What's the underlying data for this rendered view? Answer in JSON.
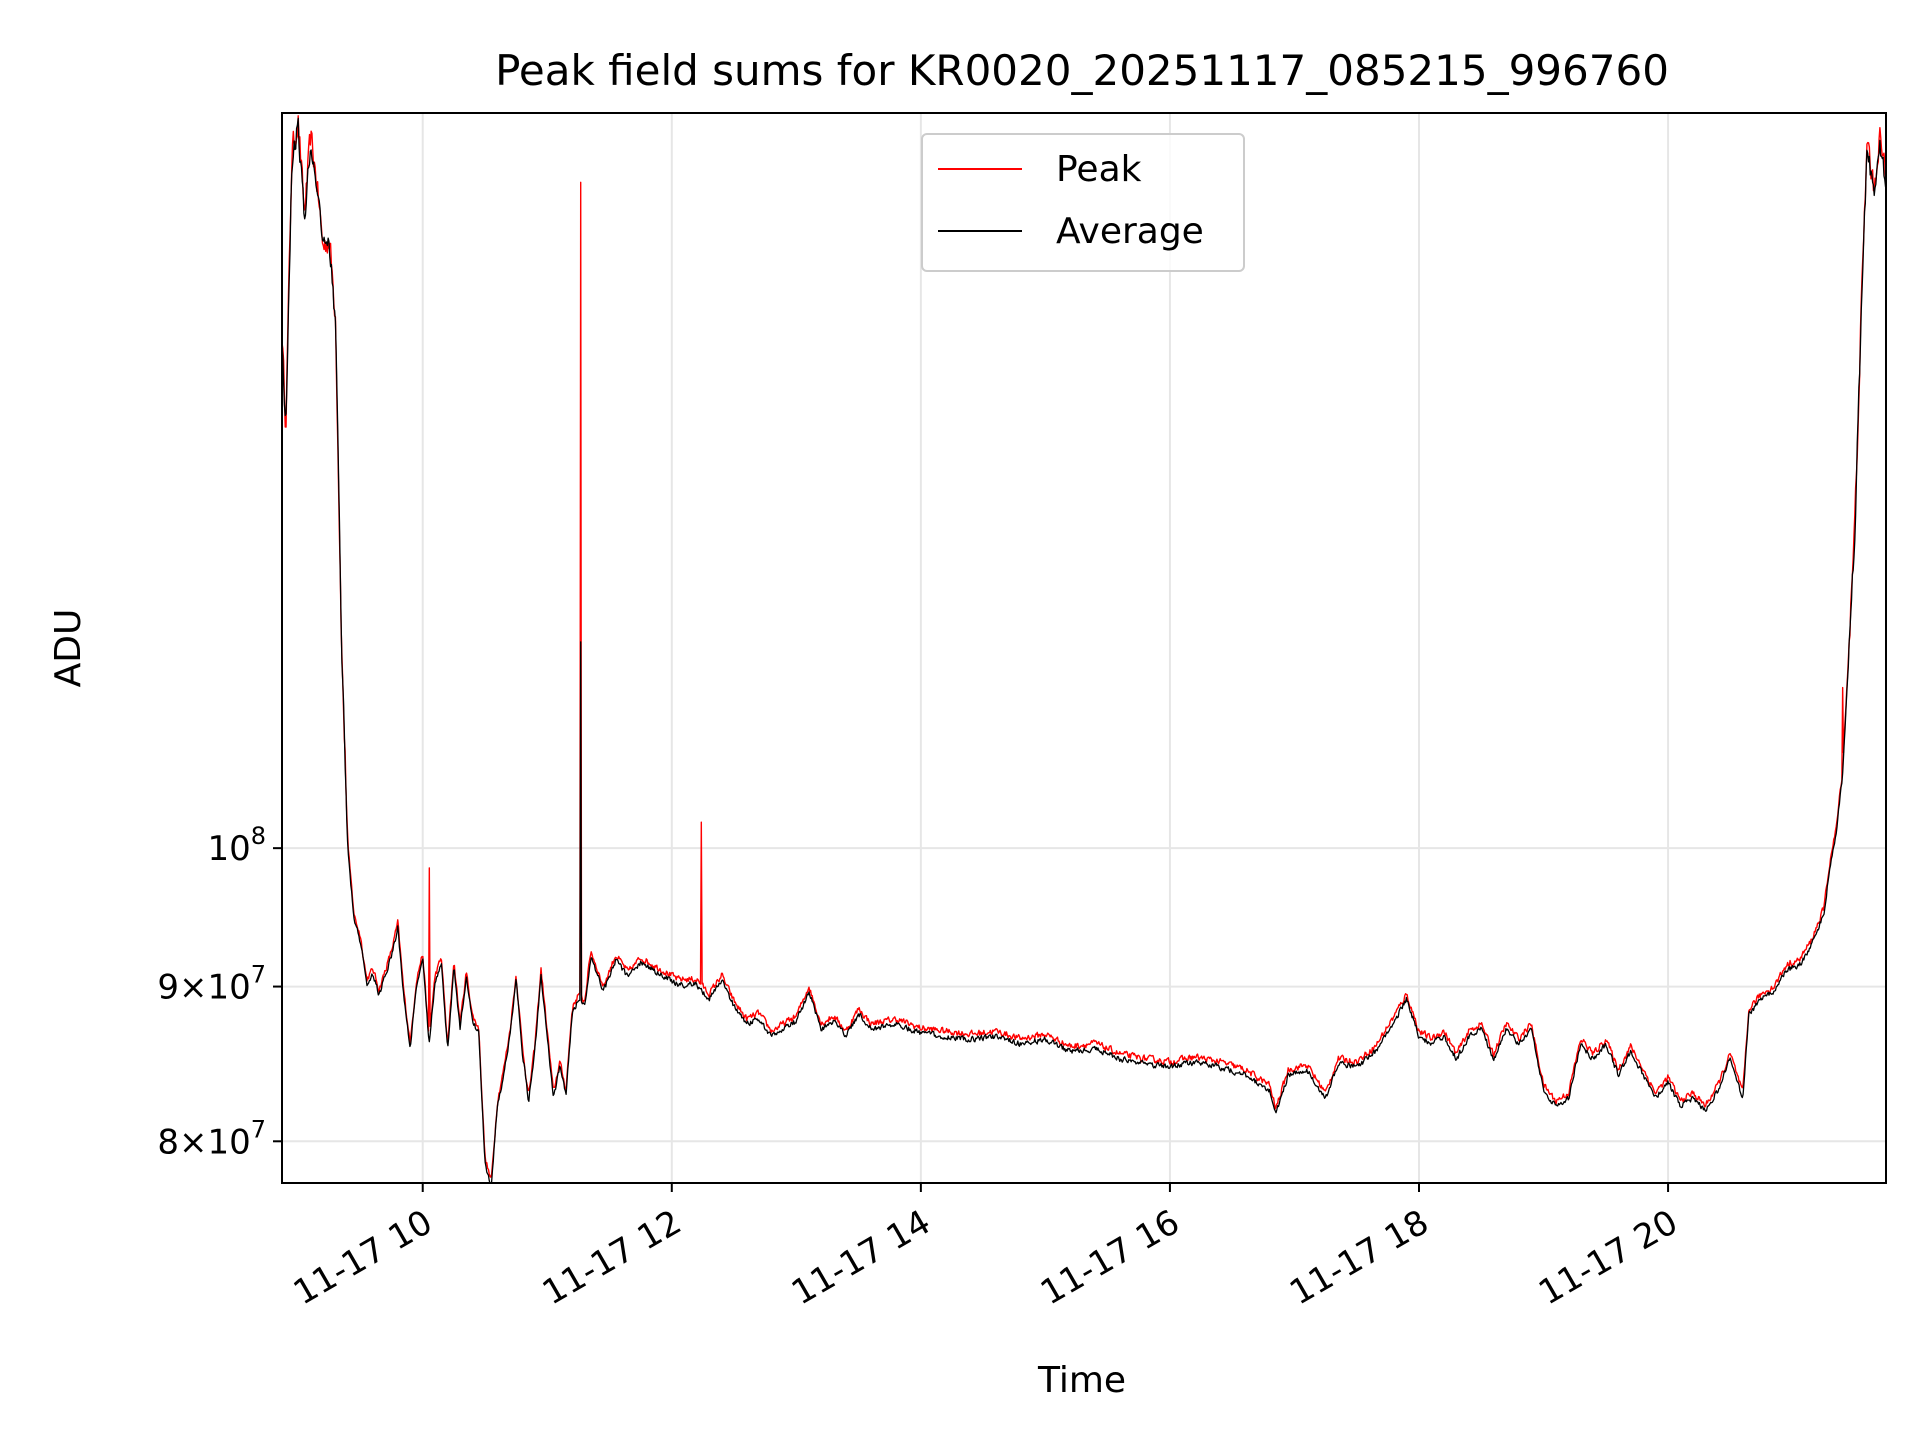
{
  "chart_data": {
    "type": "line",
    "title": "Peak field sums for KR0020_20251117_085215_996760",
    "xlabel": "Time",
    "ylabel": "ADU",
    "yscale": "log",
    "xlim": [
      8.87,
      21.75
    ],
    "ylim": [
      77500000,
      175000000
    ],
    "grid": true,
    "legend_position": "top-center",
    "x_ticks": [
      {
        "value": 10,
        "label": "11-17 10"
      },
      {
        "value": 12,
        "label": "11-17 12"
      },
      {
        "value": 14,
        "label": "11-17 14"
      },
      {
        "value": 16,
        "label": "11-17 16"
      },
      {
        "value": 18,
        "label": "11-17 18"
      },
      {
        "value": 20,
        "label": "11-17 20"
      }
    ],
    "y_ticks": [
      {
        "value": 80000000,
        "base": "8",
        "sup": "7"
      },
      {
        "value": 90000000,
        "base": "9",
        "sup": "7"
      },
      {
        "value": 100000000,
        "base": "10",
        "sup": "8"
      }
    ],
    "series": [
      {
        "name": "Peak",
        "color": "#ff0000",
        "noise": 0.0035,
        "spikes": [
          [
            10.05,
            98500000
          ],
          [
            11.27,
            166000000
          ],
          [
            12.24,
            102000000
          ],
          [
            20.98,
            91800000
          ],
          [
            21.4,
            113000000
          ]
        ],
        "points": [
          [
            8.87,
            148000000
          ],
          [
            8.9,
            138000000
          ],
          [
            8.95,
            170000000
          ],
          [
            9.0,
            174000000
          ],
          [
            9.05,
            162000000
          ],
          [
            9.1,
            172000000
          ],
          [
            9.15,
            166000000
          ],
          [
            9.2,
            158000000
          ],
          [
            9.25,
            159000000
          ],
          [
            9.3,
            150000000
          ],
          [
            9.35,
            116000000
          ],
          [
            9.4,
            100000000
          ],
          [
            9.45,
            95000000
          ],
          [
            9.5,
            93500000
          ],
          [
            9.55,
            90500000
          ],
          [
            9.6,
            91200000
          ],
          [
            9.65,
            89800000
          ],
          [
            9.75,
            92500000
          ],
          [
            9.8,
            94500000
          ],
          [
            9.85,
            89500000
          ],
          [
            9.9,
            86200000
          ],
          [
            9.95,
            90500000
          ],
          [
            10.0,
            92300000
          ],
          [
            10.05,
            86500000
          ],
          [
            10.1,
            90800000
          ],
          [
            10.15,
            92000000
          ],
          [
            10.2,
            86000000
          ],
          [
            10.25,
            91800000
          ],
          [
            10.3,
            87500000
          ],
          [
            10.35,
            91000000
          ],
          [
            10.4,
            88000000
          ],
          [
            10.45,
            87200000
          ],
          [
            10.5,
            79000000
          ],
          [
            10.55,
            77600000
          ],
          [
            10.6,
            82500000
          ],
          [
            10.65,
            84500000
          ],
          [
            10.7,
            87000000
          ],
          [
            10.75,
            90800000
          ],
          [
            10.8,
            86000000
          ],
          [
            10.85,
            82800000
          ],
          [
            10.9,
            86000000
          ],
          [
            10.95,
            91200000
          ],
          [
            11.0,
            87000000
          ],
          [
            11.05,
            83000000
          ],
          [
            11.1,
            85000000
          ],
          [
            11.15,
            83200000
          ],
          [
            11.2,
            88500000
          ],
          [
            11.25,
            89500000
          ],
          [
            11.3,
            89000000
          ],
          [
            11.35,
            92500000
          ],
          [
            11.45,
            90000000
          ],
          [
            11.55,
            92200000
          ],
          [
            11.65,
            91000000
          ],
          [
            11.75,
            92000000
          ],
          [
            11.85,
            91500000
          ],
          [
            11.95,
            91000000
          ],
          [
            12.05,
            90500000
          ],
          [
            12.2,
            90500000
          ],
          [
            12.3,
            89500000
          ],
          [
            12.4,
            90800000
          ],
          [
            12.5,
            89000000
          ],
          [
            12.6,
            87800000
          ],
          [
            12.7,
            88200000
          ],
          [
            12.8,
            87000000
          ],
          [
            12.9,
            87500000
          ],
          [
            13.0,
            88000000
          ],
          [
            13.1,
            90000000
          ],
          [
            13.2,
            87500000
          ],
          [
            13.3,
            88000000
          ],
          [
            13.4,
            87000000
          ],
          [
            13.5,
            88500000
          ],
          [
            13.6,
            87500000
          ],
          [
            13.8,
            87800000
          ],
          [
            14.0,
            87200000
          ],
          [
            14.2,
            87000000
          ],
          [
            14.4,
            86800000
          ],
          [
            14.6,
            87000000
          ],
          [
            14.8,
            86500000
          ],
          [
            15.0,
            86800000
          ],
          [
            15.2,
            86000000
          ],
          [
            15.4,
            86200000
          ],
          [
            15.6,
            85500000
          ],
          [
            15.8,
            85200000
          ],
          [
            16.0,
            85000000
          ],
          [
            16.2,
            85300000
          ],
          [
            16.4,
            85000000
          ],
          [
            16.6,
            84500000
          ],
          [
            16.8,
            83500000
          ],
          [
            16.85,
            82000000
          ],
          [
            16.95,
            84500000
          ],
          [
            17.1,
            84800000
          ],
          [
            17.25,
            83000000
          ],
          [
            17.35,
            85200000
          ],
          [
            17.5,
            85000000
          ],
          [
            17.65,
            86000000
          ],
          [
            17.8,
            88000000
          ],
          [
            17.9,
            89500000
          ],
          [
            18.0,
            87000000
          ],
          [
            18.1,
            86500000
          ],
          [
            18.2,
            87000000
          ],
          [
            18.3,
            85500000
          ],
          [
            18.4,
            87000000
          ],
          [
            18.5,
            87500000
          ],
          [
            18.6,
            85500000
          ],
          [
            18.7,
            87500000
          ],
          [
            18.8,
            86500000
          ],
          [
            18.9,
            87500000
          ],
          [
            19.0,
            83500000
          ],
          [
            19.1,
            82500000
          ],
          [
            19.2,
            83000000
          ],
          [
            19.3,
            86500000
          ],
          [
            19.4,
            85500000
          ],
          [
            19.5,
            86500000
          ],
          [
            19.6,
            84500000
          ],
          [
            19.7,
            86000000
          ],
          [
            19.8,
            84500000
          ],
          [
            19.9,
            83000000
          ],
          [
            20.0,
            84000000
          ],
          [
            20.1,
            82500000
          ],
          [
            20.2,
            83000000
          ],
          [
            20.3,
            82200000
          ],
          [
            20.4,
            83500000
          ],
          [
            20.5,
            85500000
          ],
          [
            20.6,
            83000000
          ],
          [
            20.65,
            88500000
          ],
          [
            20.75,
            89500000
          ],
          [
            20.85,
            90000000
          ],
          [
            20.95,
            91500000
          ],
          [
            21.05,
            91800000
          ],
          [
            21.15,
            93200000
          ],
          [
            21.25,
            95500000
          ],
          [
            21.3,
            99000000
          ],
          [
            21.35,
            101500000
          ],
          [
            21.4,
            106000000
          ],
          [
            21.45,
            116000000
          ],
          [
            21.5,
            128000000
          ],
          [
            21.55,
            150000000
          ],
          [
            21.6,
            172000000
          ],
          [
            21.65,
            165000000
          ],
          [
            21.7,
            172000000
          ],
          [
            21.75,
            166000000
          ]
        ]
      },
      {
        "name": "Average",
        "color": "#000000",
        "noise": 0.003,
        "spikes": [
          [
            11.27,
            117000000
          ]
        ],
        "offset": 0.996
      }
    ]
  }
}
